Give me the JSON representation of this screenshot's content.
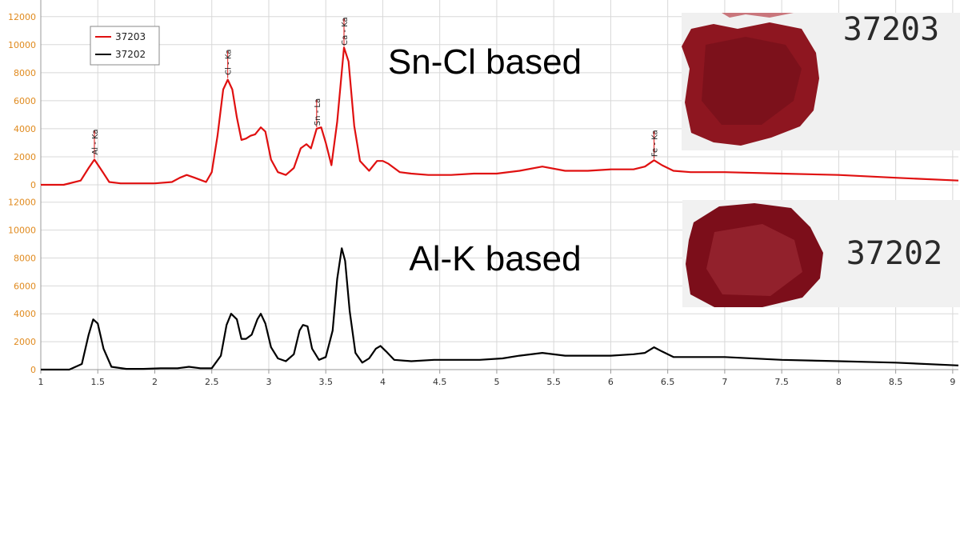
{
  "chart_data": {
    "type": "line",
    "x_ticks": [
      "1",
      "1.5",
      "2",
      "2.5",
      "3",
      "3.5",
      "4",
      "4.5",
      "5",
      "5.5",
      "6",
      "6.5",
      "7",
      "7.5",
      "8",
      "8.5",
      "9"
    ],
    "xlim": [
      1,
      9.05
    ],
    "y_ticks": [
      "0",
      "2000",
      "4000",
      "6000",
      "8000",
      "10000",
      "12000"
    ],
    "ylim": [
      0,
      12500
    ],
    "grid": true,
    "legend": {
      "placement": "top-left",
      "entries": [
        {
          "name": "37203",
          "color": "#e01010"
        },
        {
          "name": "37202",
          "color": "#000000"
        }
      ]
    },
    "panels": [
      {
        "title": "Sn-Cl based",
        "series": {
          "name": "37203",
          "color": "#e01010",
          "x": [
            1.0,
            1.2,
            1.35,
            1.42,
            1.47,
            1.52,
            1.6,
            1.7,
            1.85,
            2.0,
            2.15,
            2.22,
            2.28,
            2.35,
            2.45,
            2.5,
            2.55,
            2.6,
            2.64,
            2.68,
            2.72,
            2.76,
            2.8,
            2.84,
            2.88,
            2.93,
            2.97,
            3.02,
            3.08,
            3.15,
            3.22,
            3.28,
            3.33,
            3.37,
            3.42,
            3.46,
            3.5,
            3.55,
            3.6,
            3.66,
            3.7,
            3.75,
            3.8,
            3.88,
            3.95,
            4.0,
            4.05,
            4.15,
            4.25,
            4.4,
            4.6,
            4.8,
            5.0,
            5.2,
            5.4,
            5.6,
            5.8,
            6.0,
            6.2,
            6.3,
            6.38,
            6.45,
            6.55,
            6.7,
            7.0,
            7.5,
            8.0,
            8.5,
            9.05
          ],
          "y": [
            0,
            0,
            300,
            1200,
            1800,
            1200,
            200,
            100,
            100,
            100,
            200,
            500,
            700,
            500,
            200,
            900,
            3500,
            6800,
            7500,
            6800,
            4800,
            3200,
            3300,
            3500,
            3600,
            4100,
            3800,
            1800,
            900,
            700,
            1200,
            2600,
            2900,
            2600,
            4000,
            4100,
            3000,
            1400,
            4500,
            9800,
            8800,
            4200,
            1700,
            1000,
            1700,
            1700,
            1500,
            900,
            800,
            700,
            700,
            800,
            800,
            1000,
            1300,
            1000,
            1000,
            1100,
            1100,
            1300,
            1750,
            1400,
            1000,
            900,
            900,
            800,
            700,
            500,
            300
          ]
        },
        "peak_labels": [
          {
            "text": "Al - Ka",
            "x": 1.47
          },
          {
            "text": "Cl - Ka",
            "x": 2.64
          },
          {
            "text": "Sn - La",
            "x": 3.42
          },
          {
            "text": "Ca - Ka",
            "x": 3.66
          },
          {
            "text": "Fe - Ka",
            "x": 6.38
          }
        ],
        "photo": {
          "sample_code": "37203",
          "stain_color": "#8e1620"
        }
      },
      {
        "title": "Al-K based",
        "series": {
          "name": "37202",
          "color": "#000000",
          "x": [
            1.0,
            1.25,
            1.36,
            1.42,
            1.46,
            1.5,
            1.55,
            1.62,
            1.75,
            1.9,
            2.05,
            2.2,
            2.3,
            2.4,
            2.5,
            2.58,
            2.63,
            2.67,
            2.72,
            2.76,
            2.8,
            2.85,
            2.9,
            2.93,
            2.97,
            3.02,
            3.08,
            3.15,
            3.22,
            3.27,
            3.3,
            3.34,
            3.38,
            3.44,
            3.5,
            3.56,
            3.6,
            3.64,
            3.67,
            3.71,
            3.76,
            3.82,
            3.88,
            3.94,
            3.98,
            4.03,
            4.1,
            4.25,
            4.45,
            4.65,
            4.85,
            5.05,
            5.2,
            5.4,
            5.6,
            5.8,
            6.0,
            6.2,
            6.3,
            6.38,
            6.45,
            6.55,
            6.7,
            7.0,
            7.5,
            8.0,
            8.5,
            9.05
          ],
          "y": [
            0,
            0,
            400,
            2500,
            3600,
            3300,
            1500,
            200,
            50,
            50,
            100,
            100,
            200,
            100,
            100,
            1000,
            3200,
            4000,
            3600,
            2200,
            2200,
            2500,
            3600,
            4000,
            3300,
            1600,
            800,
            600,
            1100,
            2800,
            3200,
            3100,
            1500,
            700,
            900,
            2800,
            6500,
            8700,
            7800,
            4200,
            1200,
            500,
            800,
            1500,
            1700,
            1300,
            700,
            600,
            700,
            700,
            700,
            800,
            1000,
            1200,
            1000,
            1000,
            1000,
            1100,
            1200,
            1600,
            1300,
            900,
            900,
            900,
            700,
            600,
            500,
            300
          ]
        },
        "photo": {
          "sample_code": "37202",
          "stain_color": "#7c0e1a"
        }
      }
    ]
  }
}
